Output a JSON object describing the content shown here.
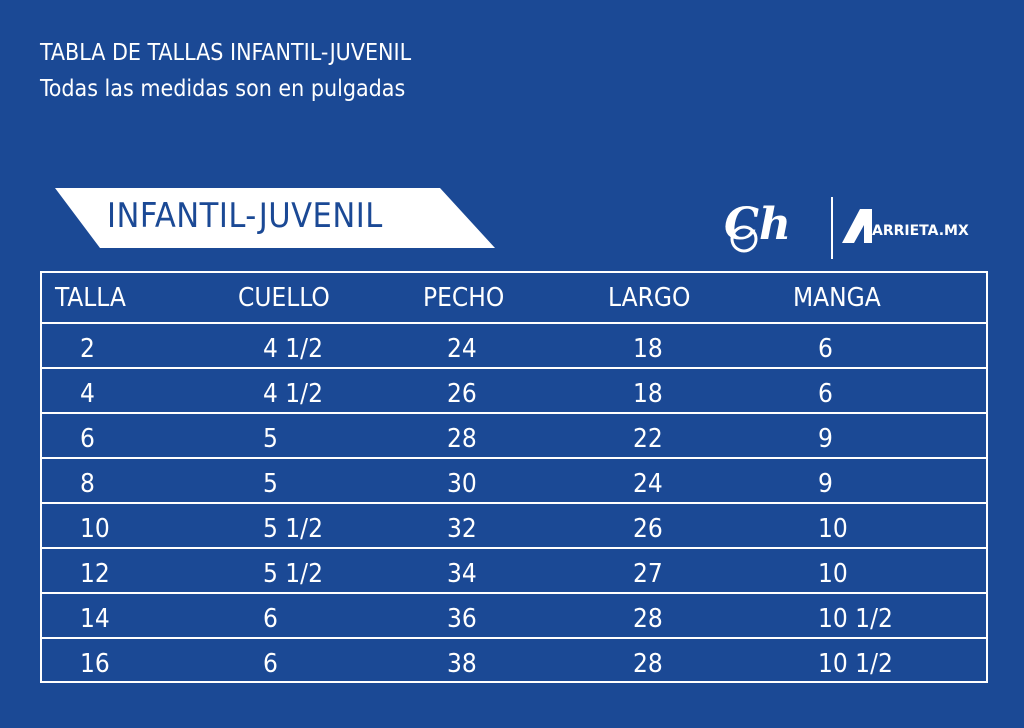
{
  "title": "TABLA DE TALLAS INFANTIL-JUVENIL",
  "subtitle": "Todas las medidas son en pulgadas",
  "section_label": "INFANTIL-JUVENIL",
  "logos": {
    "left": "Ch",
    "right": "ARRIETA.MX"
  },
  "colors": {
    "background": "#1b4995",
    "foreground": "#ffffff"
  },
  "table": {
    "headers": [
      "TALLA",
      "CUELLO",
      "PECHO",
      "LARGO",
      "MANGA"
    ],
    "rows": [
      [
        "2",
        "4 1/2",
        "24",
        "18",
        "6"
      ],
      [
        "4",
        "4 1/2",
        "26",
        "18",
        "6"
      ],
      [
        "6",
        "5",
        "28",
        "22",
        "9"
      ],
      [
        "8",
        "5",
        "30",
        "24",
        "9"
      ],
      [
        "10",
        "5 1/2",
        "32",
        "26",
        "10"
      ],
      [
        "12",
        "5 1/2",
        "34",
        "27",
        "10"
      ],
      [
        "14",
        "6",
        "36",
        "28",
        "10 1/2"
      ],
      [
        "16",
        "6",
        "38",
        "28",
        "10 1/2"
      ]
    ]
  }
}
